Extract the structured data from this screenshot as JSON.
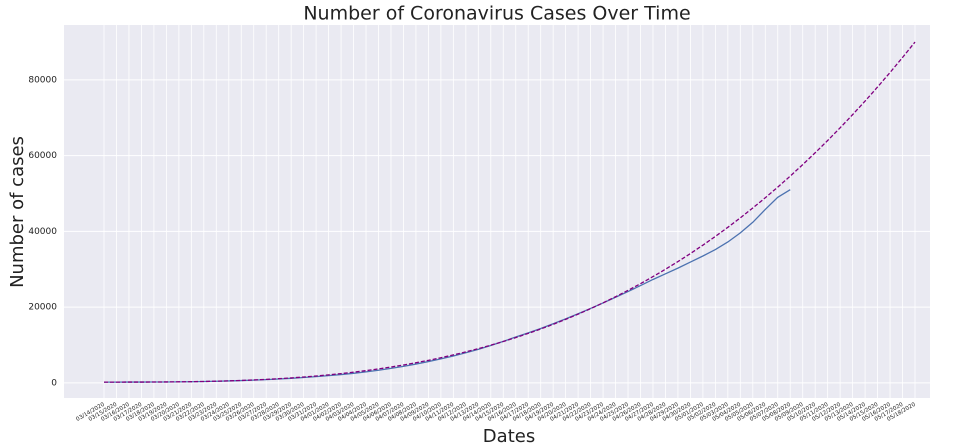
{
  "chart_data": {
    "type": "line",
    "title": "Number of Coronavirus Cases Over Time",
    "xlabel": "Dates",
    "ylabel": "Number of cases",
    "categories": [
      "03/14/2020",
      "03/15/2020",
      "03/16/2020",
      "03/17/2020",
      "03/18/2020",
      "03/19/2020",
      "03/20/2020",
      "03/21/2020",
      "03/22/2020",
      "03/23/2020",
      "03/24/2020",
      "03/25/2020",
      "03/26/2020",
      "03/27/2020",
      "03/28/2020",
      "03/29/2020",
      "03/30/2020",
      "03/31/2020",
      "04/01/2020",
      "04/02/2020",
      "04/03/2020",
      "04/04/2020",
      "04/05/2020",
      "04/06/2020",
      "04/07/2020",
      "04/08/2020",
      "04/09/2020",
      "04/10/2020",
      "04/11/2020",
      "04/12/2020",
      "04/13/2020",
      "04/14/2020",
      "04/15/2020",
      "04/16/2020",
      "04/17/2020",
      "04/18/2020",
      "04/19/2020",
      "04/20/2020",
      "04/21/2020",
      "04/22/2020",
      "04/23/2020",
      "04/24/2020",
      "04/25/2020",
      "04/26/2020",
      "04/27/2020",
      "04/28/2020",
      "04/29/2020",
      "04/30/2020",
      "05/01/2020",
      "05/02/2020",
      "05/03/2020",
      "05/04/2020",
      "05/05/2020",
      "05/06/2020",
      "05/07/2020",
      "05/08/2020",
      "05/09/2020",
      "05/10/2020",
      "05/11/2020",
      "05/12/2020",
      "05/13/2020",
      "05/14/2020",
      "05/15/2020",
      "05/16/2020",
      "05/17/2020",
      "05/18/2020"
    ],
    "series": [
      {
        "color": "#4c72b0",
        "dash": false,
        "values": [
          200,
          200,
          205,
          210,
          220,
          235,
          260,
          300,
          350,
          420,
          500,
          600,
          720,
          860,
          1020,
          1200,
          1410,
          1640,
          1900,
          2190,
          2520,
          2900,
          3330,
          3820,
          4360,
          4960,
          5620,
          6330,
          7100,
          7940,
          8850,
          9850,
          10950,
          12100,
          13200,
          14350,
          15600,
          16900,
          18250,
          19650,
          21100,
          22600,
          24100,
          25700,
          27300,
          28800,
          30300,
          31900,
          33500,
          35200,
          37200,
          39600,
          42400,
          45800,
          49000,
          51000,
          null,
          null,
          null,
          null,
          null,
          null,
          null,
          null,
          null,
          null
        ]
      },
      {
        "color": "#800080",
        "dash": true,
        "values": [
          200,
          200,
          203,
          209,
          221,
          241,
          271,
          312,
          367,
          438,
          527,
          635,
          765,
          918,
          1097,
          1304,
          1539,
          1807,
          2107,
          2443,
          2816,
          3228,
          3682,
          4179,
          4720,
          5309,
          5947,
          6636,
          7378,
          8175,
          9029,
          9941,
          10915,
          11951,
          13052,
          14220,
          15456,
          16763,
          18143,
          19597,
          21127,
          22736,
          24426,
          26198,
          28054,
          29997,
          32028,
          34149,
          36363,
          38670,
          41074,
          43576,
          46177,
          48881,
          51689,
          54603,
          57625,
          60756,
          64000,
          67357,
          70830,
          74421,
          78131,
          81963,
          85919,
          90000
        ]
      }
    ],
    "ylim": [
      -4000,
      94500
    ],
    "yticks": [
      0,
      20000,
      40000,
      60000,
      80000
    ],
    "grid": true,
    "background": "#eaeaf2"
  }
}
